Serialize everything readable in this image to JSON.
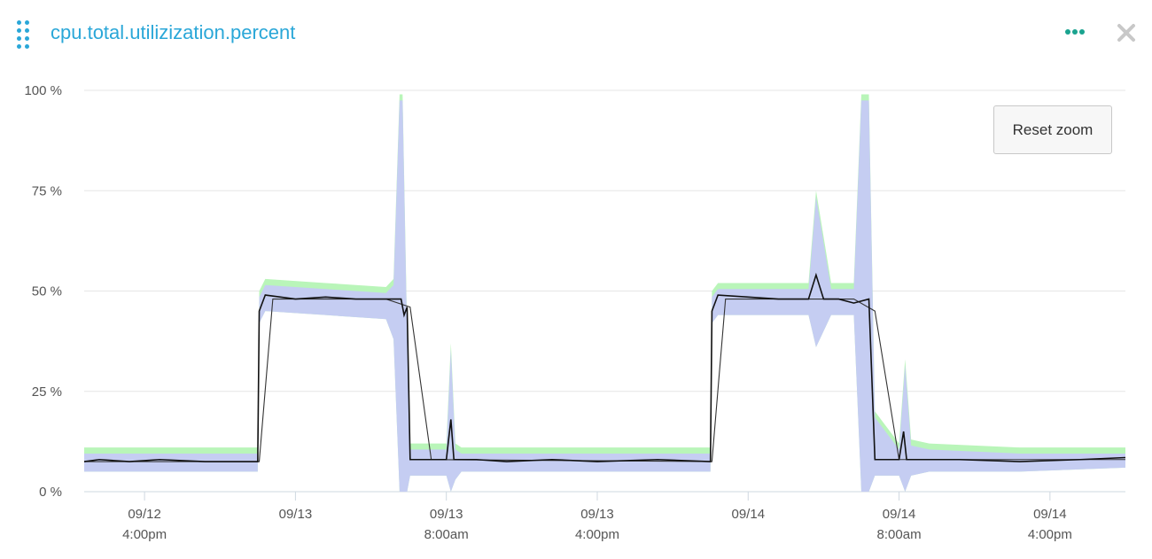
{
  "widget": {
    "title": "cpu.total.utilizization.percent",
    "menu_icon": "more-dots-icon",
    "close_icon": "close-x-icon",
    "accent_color": "#2aa7d8",
    "menu_color": "#1aa38f"
  },
  "chart": {
    "reset_zoom_label": "Reset zoom"
  },
  "chart_data": {
    "type": "area",
    "title": "",
    "xlabel": "",
    "ylabel": "",
    "ylim": [
      0,
      100
    ],
    "y_ticks": [
      "100 %",
      "75 %",
      "50 %",
      "25 %",
      "0 %"
    ],
    "y_tick_values": [
      100,
      75,
      50,
      25,
      0
    ],
    "x_range_hours": [
      0,
      48
    ],
    "x_ticks": [
      {
        "line1": "09/12",
        "line2": "4:00pm",
        "t": 4
      },
      {
        "line1": "09/13",
        "line2": "",
        "t": 14
      },
      {
        "line1": "09/13",
        "line2": "8:00am",
        "t": 24
      },
      {
        "line1": "09/13",
        "line2": "4:00pm",
        "t": 34
      },
      {
        "line1": "09/14",
        "line2": "",
        "t": 44
      },
      {
        "line1": "09/14",
        "line2": "8:00am",
        "t": 54
      },
      {
        "line1": "09/14",
        "line2": "4:00pm",
        "t": 64
      }
    ],
    "x_domain": [
      0,
      69
    ],
    "grid": true,
    "legend": "none",
    "series": [
      {
        "role": "band-max",
        "color": "#b9f5b9",
        "x": [
          0,
          11.5,
          11.6,
          12,
          16,
          20,
          20.5,
          20.9,
          21.1,
          21.4,
          21.6,
          22,
          24,
          24.3,
          24.6,
          25,
          30,
          40,
          41.5,
          41.6,
          42,
          46,
          48,
          48.5,
          49.5,
          50,
          50.4,
          51,
          51.5,
          52,
          52.4,
          54,
          54.4,
          54.8,
          56,
          62,
          69
        ],
        "y": [
          11,
          11,
          50,
          53,
          52,
          51,
          53,
          99,
          99,
          40,
          12,
          12,
          12,
          37,
          12,
          11,
          11,
          11,
          11,
          50,
          52,
          52,
          52,
          75,
          52,
          52,
          52,
          52,
          99,
          99,
          20,
          12,
          33,
          13,
          12,
          11,
          11
        ]
      },
      {
        "role": "band-min",
        "color": "#c5cdf2",
        "x": [
          0,
          11.5,
          11.6,
          12,
          16,
          20,
          20.5,
          20.9,
          21.1,
          21.4,
          21.6,
          22,
          24,
          24.3,
          24.6,
          25,
          30,
          40,
          41.5,
          41.6,
          42,
          46,
          48,
          48.5,
          49.5,
          50,
          50.4,
          51,
          51.5,
          52,
          52.4,
          54,
          54.4,
          54.8,
          56,
          62,
          69
        ],
        "y": [
          5,
          5,
          42,
          45,
          44,
          43,
          38,
          0,
          0,
          0,
          4,
          4,
          4,
          0,
          3,
          5,
          5,
          5,
          5,
          42,
          44,
          44,
          44,
          36,
          44,
          44,
          44,
          44,
          0,
          0,
          4,
          4,
          0,
          4,
          5,
          5,
          6
        ]
      },
      {
        "role": "mean",
        "color": "#111111",
        "x": [
          0,
          1,
          3,
          5,
          8,
          11.5,
          11.6,
          12,
          14,
          16,
          18,
          20,
          21,
          21.2,
          21.4,
          21.6,
          22,
          24,
          24.3,
          24.5,
          26,
          28,
          31,
          34,
          38,
          41.5,
          41.6,
          42,
          44,
          46,
          48,
          48.5,
          49,
          50,
          51,
          52,
          52.4,
          54,
          54.3,
          54.5,
          56,
          58,
          62,
          66,
          69
        ],
        "y": [
          7.5,
          8,
          7.5,
          8,
          7.5,
          7.5,
          45,
          49,
          48,
          48.5,
          48,
          48,
          48,
          44,
          46,
          8,
          8,
          8,
          18,
          8,
          8,
          7.5,
          8,
          7.5,
          8,
          7.5,
          45,
          49,
          48.5,
          48,
          48,
          54,
          48,
          48,
          47,
          48,
          8,
          8,
          15,
          8,
          8,
          8,
          7.5,
          8,
          8.5
        ]
      },
      {
        "role": "smoothed",
        "color": "#333333",
        "x": [
          0,
          11.6,
          12.5,
          20,
          21.6,
          23,
          41.6,
          42.5,
          51,
          52.4,
          54,
          69
        ],
        "y": [
          7.5,
          7.5,
          48,
          48,
          46,
          8,
          7.5,
          48,
          48,
          45,
          8,
          8
        ]
      }
    ]
  }
}
